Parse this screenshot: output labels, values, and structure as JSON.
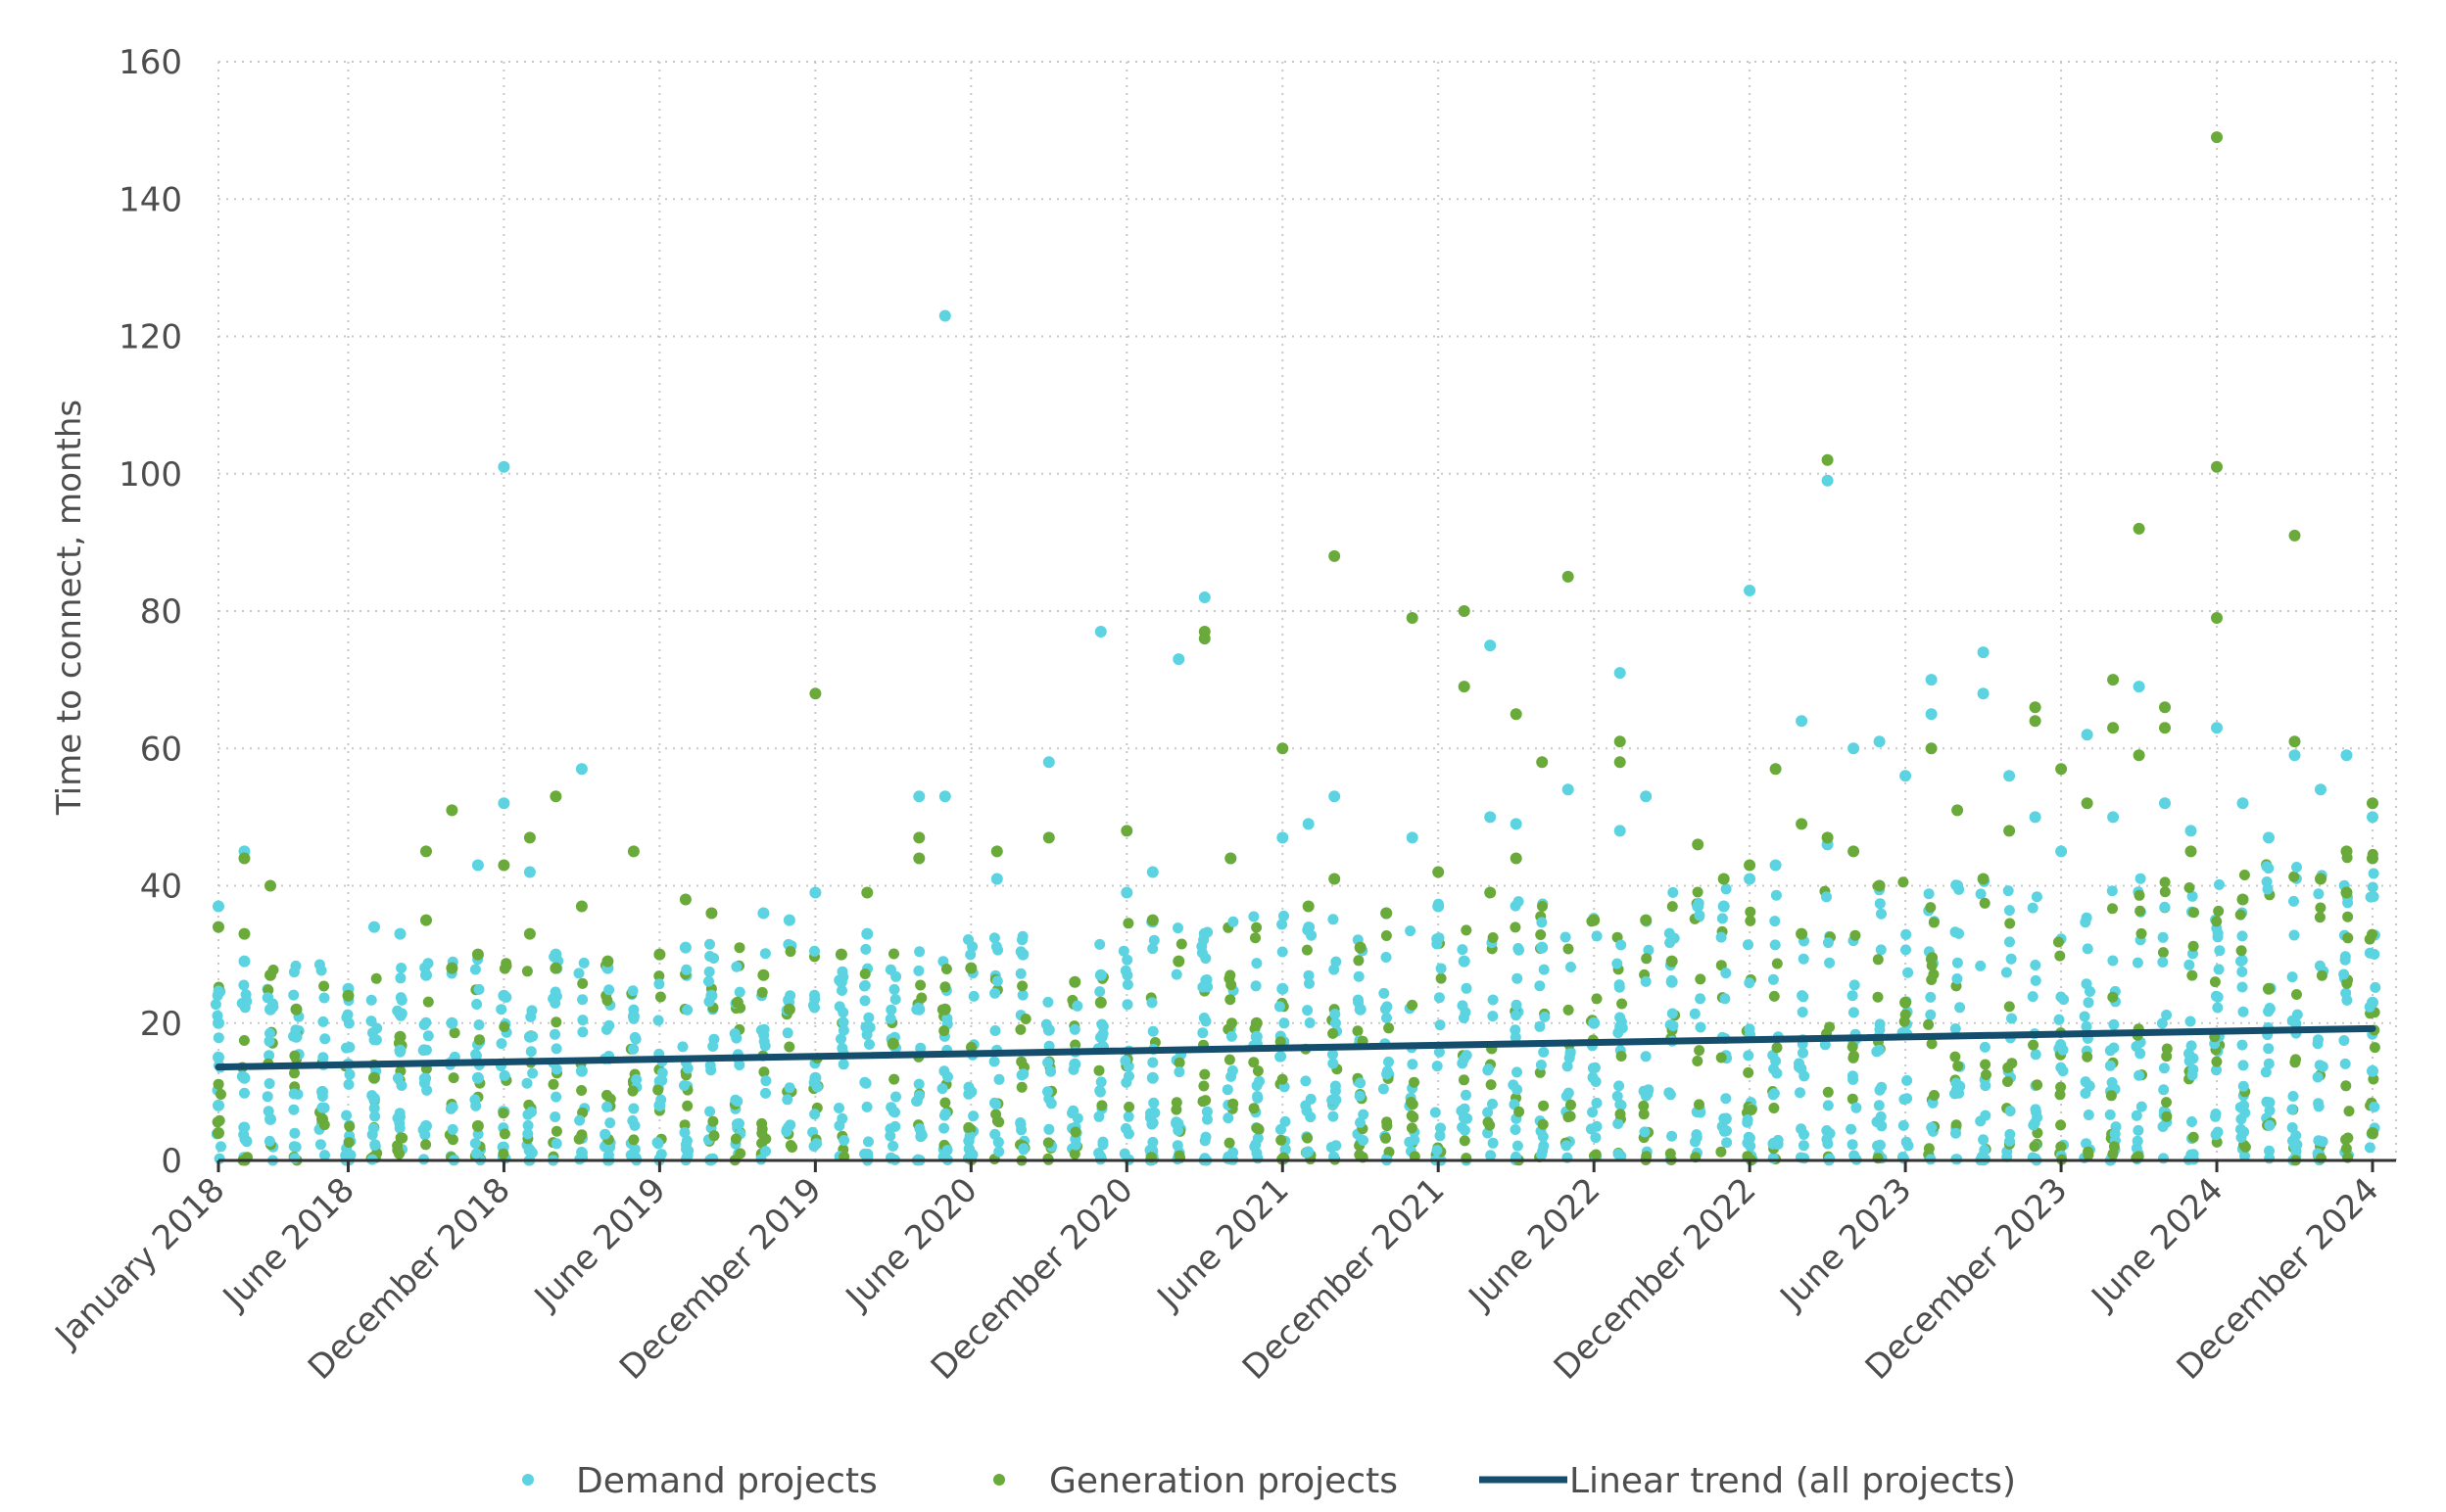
{
  "chart_data": {
    "type": "scatter",
    "title": "",
    "ylabel": "Time to connect, months",
    "xlabel": "",
    "ylim": [
      0,
      160
    ],
    "yticks": [
      "0",
      "20",
      "40",
      "60",
      "80",
      "100",
      "120",
      "140",
      "160"
    ],
    "xlim": [
      "2018-01",
      "2024-12"
    ],
    "xticks": [
      {
        "label": "January 2018",
        "date": "2018-01"
      },
      {
        "label": "June 2018",
        "date": "2018-06"
      },
      {
        "label": "December 2018",
        "date": "2018-12"
      },
      {
        "label": "June 2019",
        "date": "2019-06"
      },
      {
        "label": "December 2019",
        "date": "2019-12"
      },
      {
        "label": "June 2020",
        "date": "2020-06"
      },
      {
        "label": "December 2020",
        "date": "2020-12"
      },
      {
        "label": "June 2021",
        "date": "2021-06"
      },
      {
        "label": "December 2021",
        "date": "2021-12"
      },
      {
        "label": "June 2022",
        "date": "2022-06"
      },
      {
        "label": "December 2022",
        "date": "2022-12"
      },
      {
        "label": "June 2023",
        "date": "2023-06"
      },
      {
        "label": "December 2023",
        "date": "2023-12"
      },
      {
        "label": "June 2024",
        "date": "2024-06"
      },
      {
        "label": "December 2024",
        "date": "2024-12"
      }
    ],
    "grid": true,
    "legend_position": "bottom",
    "series": [
      {
        "name": "Demand projects",
        "color": "#5bd3e0",
        "points": [
          [
            "2018-01",
            37
          ],
          [
            "2018-01",
            20
          ],
          [
            "2018-01",
            15
          ],
          [
            "2018-01",
            8
          ],
          [
            "2018-02",
            29
          ],
          [
            "2018-02",
            45
          ],
          [
            "2018-02",
            12
          ],
          [
            "2018-03",
            22
          ],
          [
            "2018-03",
            6
          ],
          [
            "2018-04",
            18
          ],
          [
            "2018-05",
            10
          ],
          [
            "2018-06",
            25
          ],
          [
            "2018-06",
            14
          ],
          [
            "2018-07",
            34
          ],
          [
            "2018-07",
            9
          ],
          [
            "2018-08",
            33
          ],
          [
            "2018-08",
            16
          ],
          [
            "2018-09",
            27
          ],
          [
            "2018-09",
            5
          ],
          [
            "2018-10",
            20
          ],
          [
            "2018-11",
            43
          ],
          [
            "2018-11",
            12
          ],
          [
            "2018-12",
            101
          ],
          [
            "2018-12",
            52
          ],
          [
            "2018-12",
            24
          ],
          [
            "2019-01",
            42
          ],
          [
            "2019-01",
            18
          ],
          [
            "2019-02",
            30
          ],
          [
            "2019-03",
            57
          ],
          [
            "2019-03",
            13
          ],
          [
            "2019-04",
            28
          ],
          [
            "2019-05",
            21
          ],
          [
            "2019-06",
            8
          ],
          [
            "2019-07",
            31
          ],
          [
            "2019-08",
            24
          ],
          [
            "2019-09",
            15
          ],
          [
            "2019-10",
            36
          ],
          [
            "2019-11",
            35
          ],
          [
            "2019-12",
            39
          ],
          [
            "2019-12",
            12
          ],
          [
            "2020-01",
            26
          ],
          [
            "2020-02",
            33
          ],
          [
            "2020-03",
            17
          ],
          [
            "2020-04",
            53
          ],
          [
            "2020-04",
            22
          ],
          [
            "2020-05",
            123
          ],
          [
            "2020-05",
            53
          ],
          [
            "2020-06",
            10
          ],
          [
            "2020-07",
            41
          ],
          [
            "2020-08",
            30
          ],
          [
            "2020-09",
            58
          ],
          [
            "2020-09",
            19
          ],
          [
            "2020-10",
            14
          ],
          [
            "2020-11",
            77
          ],
          [
            "2020-11",
            27
          ],
          [
            "2020-12",
            39
          ],
          [
            "2021-01",
            42
          ],
          [
            "2021-01",
            12
          ],
          [
            "2021-02",
            73
          ],
          [
            "2021-03",
            82
          ],
          [
            "2021-03",
            33
          ],
          [
            "2021-04",
            44
          ],
          [
            "2021-05",
            18
          ],
          [
            "2021-06",
            47
          ],
          [
            "2021-06",
            25
          ],
          [
            "2021-07",
            49
          ],
          [
            "2021-08",
            53
          ],
          [
            "2021-09",
            22
          ],
          [
            "2021-10",
            36
          ],
          [
            "2021-11",
            47
          ],
          [
            "2021-12",
            37
          ],
          [
            "2022-01",
            29
          ],
          [
            "2022-02",
            75
          ],
          [
            "2022-02",
            50
          ],
          [
            "2022-03",
            49
          ],
          [
            "2022-04",
            31
          ],
          [
            "2022-05",
            54
          ],
          [
            "2022-06",
            20
          ],
          [
            "2022-07",
            48
          ],
          [
            "2022-07",
            71
          ],
          [
            "2022-08",
            53
          ],
          [
            "2022-09",
            26
          ],
          [
            "2022-10",
            37
          ],
          [
            "2022-11",
            37
          ],
          [
            "2022-12",
            83
          ],
          [
            "2022-12",
            41
          ],
          [
            "2023-01",
            43
          ],
          [
            "2023-02",
            64
          ],
          [
            "2023-03",
            46
          ],
          [
            "2023-03",
            99
          ],
          [
            "2023-04",
            60
          ],
          [
            "2023-05",
            61
          ],
          [
            "2023-06",
            56
          ],
          [
            "2023-07",
            70
          ],
          [
            "2023-07",
            65
          ],
          [
            "2023-08",
            40
          ],
          [
            "2023-09",
            74
          ],
          [
            "2023-09",
            68
          ],
          [
            "2023-10",
            56
          ],
          [
            "2023-11",
            50
          ],
          [
            "2023-12",
            45
          ],
          [
            "2024-01",
            62
          ],
          [
            "2024-02",
            50
          ],
          [
            "2024-03",
            69
          ],
          [
            "2024-04",
            52
          ],
          [
            "2024-05",
            48
          ],
          [
            "2024-06",
            63
          ],
          [
            "2024-07",
            52
          ],
          [
            "2024-08",
            47
          ],
          [
            "2024-09",
            59
          ],
          [
            "2024-10",
            54
          ],
          [
            "2024-11",
            59
          ],
          [
            "2024-12",
            50
          ],
          [
            "2024-12",
            23
          ],
          [
            "2024-12",
            13
          ]
        ]
      },
      {
        "name": "Generation projects",
        "color": "#6aaa3a",
        "points": [
          [
            "2018-01",
            34
          ],
          [
            "2018-01",
            4
          ],
          [
            "2018-02",
            44
          ],
          [
            "2018-02",
            33
          ],
          [
            "2018-03",
            40
          ],
          [
            "2018-03",
            27
          ],
          [
            "2018-04",
            22
          ],
          [
            "2018-05",
            6
          ],
          [
            "2018-06",
            24
          ],
          [
            "2018-07",
            12
          ],
          [
            "2018-08",
            18
          ],
          [
            "2018-09",
            45
          ],
          [
            "2018-09",
            35
          ],
          [
            "2018-10",
            51
          ],
          [
            "2018-10",
            28
          ],
          [
            "2018-11",
            30
          ],
          [
            "2018-11",
            5
          ],
          [
            "2018-12",
            43
          ],
          [
            "2019-01",
            47
          ],
          [
            "2019-01",
            33
          ],
          [
            "2019-02",
            53
          ],
          [
            "2019-02",
            28
          ],
          [
            "2019-03",
            37
          ],
          [
            "2019-04",
            29
          ],
          [
            "2019-05",
            45
          ],
          [
            "2019-06",
            30
          ],
          [
            "2019-07",
            38
          ],
          [
            "2019-08",
            36
          ],
          [
            "2019-09",
            23
          ],
          [
            "2019-10",
            27
          ],
          [
            "2019-11",
            22
          ],
          [
            "2019-12",
            68
          ],
          [
            "2020-01",
            30
          ],
          [
            "2020-02",
            39
          ],
          [
            "2020-03",
            17
          ],
          [
            "2020-04",
            44
          ],
          [
            "2020-04",
            47
          ],
          [
            "2020-05",
            22
          ],
          [
            "2020-06",
            28
          ],
          [
            "2020-07",
            45
          ],
          [
            "2020-09",
            47
          ],
          [
            "2020-10",
            26
          ],
          [
            "2020-11",
            23
          ],
          [
            "2020-12",
            48
          ],
          [
            "2021-01",
            35
          ],
          [
            "2021-02",
            29
          ],
          [
            "2021-03",
            77
          ],
          [
            "2021-03",
            76
          ],
          [
            "2021-04",
            44
          ],
          [
            "2021-05",
            20
          ],
          [
            "2021-06",
            60
          ],
          [
            "2021-07",
            37
          ],
          [
            "2021-08",
            88
          ],
          [
            "2021-08",
            41
          ],
          [
            "2021-09",
            31
          ],
          [
            "2021-10",
            36
          ],
          [
            "2021-11",
            79
          ],
          [
            "2021-12",
            42
          ],
          [
            "2022-01",
            80
          ],
          [
            "2022-01",
            69
          ],
          [
            "2022-02",
            39
          ],
          [
            "2022-03",
            44
          ],
          [
            "2022-03",
            65
          ],
          [
            "2022-04",
            58
          ],
          [
            "2022-05",
            85
          ],
          [
            "2022-06",
            35
          ],
          [
            "2022-07",
            61
          ],
          [
            "2022-07",
            58
          ],
          [
            "2022-08",
            35
          ],
          [
            "2022-09",
            29
          ],
          [
            "2022-10",
            46
          ],
          [
            "2022-11",
            41
          ],
          [
            "2022-12",
            43
          ],
          [
            "2023-01",
            57
          ],
          [
            "2023-02",
            49
          ],
          [
            "2023-02",
            33
          ],
          [
            "2023-03",
            47
          ],
          [
            "2023-03",
            102
          ],
          [
            "2023-04",
            45
          ],
          [
            "2023-05",
            40
          ],
          [
            "2023-06",
            23
          ],
          [
            "2023-07",
            60
          ],
          [
            "2023-08",
            51
          ],
          [
            "2023-09",
            41
          ],
          [
            "2023-10",
            48
          ],
          [
            "2023-11",
            66
          ],
          [
            "2023-11",
            64
          ],
          [
            "2023-12",
            57
          ],
          [
            "2024-01",
            52
          ],
          [
            "2024-02",
            70
          ],
          [
            "2024-02",
            63
          ],
          [
            "2024-03",
            59
          ],
          [
            "2024-03",
            92
          ],
          [
            "2024-04",
            66
          ],
          [
            "2024-04",
            63
          ],
          [
            "2024-05",
            45
          ],
          [
            "2024-06",
            149
          ],
          [
            "2024-06",
            79
          ],
          [
            "2024-06",
            101
          ],
          [
            "2024-07",
            38
          ],
          [
            "2024-08",
            25
          ],
          [
            "2024-09",
            91
          ],
          [
            "2024-09",
            61
          ],
          [
            "2024-10",
            41
          ],
          [
            "2024-11",
            45
          ],
          [
            "2024-11",
            39
          ],
          [
            "2024-12",
            52
          ],
          [
            "2024-12",
            44
          ],
          [
            "2024-12",
            4
          ]
        ]
      },
      {
        "name": "Linear trend (all projects)",
        "color": "#144e6c",
        "type": "line",
        "points": [
          [
            "2018-01",
            13.6
          ],
          [
            "2024-12",
            19.2
          ]
        ]
      }
    ]
  },
  "legend": {
    "items": [
      {
        "label": "Demand projects"
      },
      {
        "label": "Generation projects"
      },
      {
        "label": "Linear trend (all projects)"
      }
    ]
  }
}
